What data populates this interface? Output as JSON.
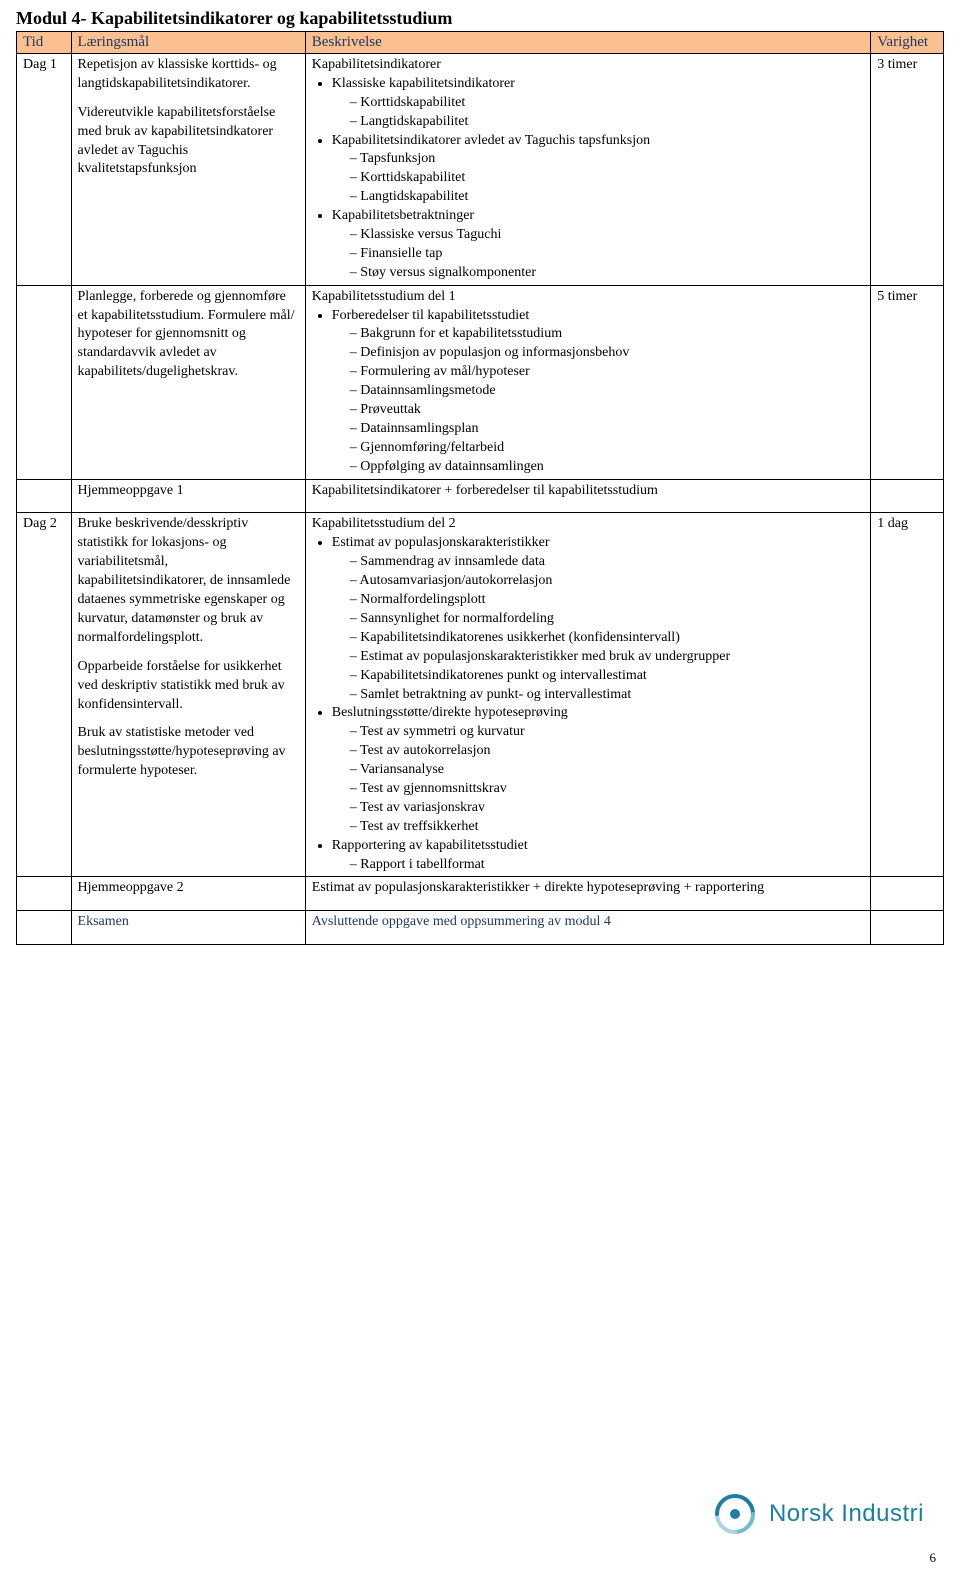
{
  "moduleTitle": "Modul 4- Kapabilitetsindikatorer og kapabilitetsstudium",
  "headers": {
    "tid": "Tid",
    "goal": "Læringsmål",
    "desc": "Beskrivelse",
    "dur": "Varighet"
  },
  "rows": [
    {
      "tid": "Dag 1",
      "goal": [
        "Repetisjon av klassiske korttids- og langtidskapabilitetsindikatorer.",
        "Videreutvikle kapabilitetsforståelse med bruk av kapabilitetsindkatorer avledet av Taguchis kvalitetstapsfunksjon"
      ],
      "descTitle": "Kapabilitetsindikatorer",
      "desc": [
        {
          "t": "Klassiske kapabilitetsindikatorer",
          "c": [
            "Korttidskapabilitet",
            "Langtidskapabilitet"
          ]
        },
        {
          "t": "Kapabilitetsindikatorer avledet av Taguchis tapsfunksjon",
          "c": [
            "Tapsfunksjon",
            "Korttidskapabilitet",
            "Langtidskapabilitet"
          ]
        },
        {
          "t": "Kapabilitetsbetraktninger",
          "c": [
            "Klassiske versus Taguchi",
            "Finansielle tap",
            "Støy versus signalkomponenter"
          ]
        }
      ],
      "dur": "3 timer"
    },
    {
      "tid": "",
      "goal": [
        "Planlegge, forberede og gjennomføre et kapabilitetsstudium. Formulere mål/ hypoteser for gjennomsnitt og standardavvik avledet av kapabilitets/dugelighetskrav."
      ],
      "descTitle": "Kapabilitetsstudium del 1",
      "desc": [
        {
          "t": "Forberedelser til kapabilitetsstudiet",
          "c": [
            "Bakgrunn for et kapabilitetsstudium",
            "Definisjon av populasjon og informasjonsbehov",
            "Formulering av mål/hypoteser",
            "Datainnsamlingsmetode",
            "Prøveuttak",
            "Datainnsamlingsplan",
            "Gjennomføring/feltarbeid",
            "Oppfølging av datainnsamlingen"
          ]
        }
      ],
      "dur": "5 timer"
    },
    {
      "tid": "",
      "goal": [
        "Hjemmeoppgave 1"
      ],
      "descPlain": "Kapabilitetsindikatorer + forberedelser til kapabilitetsstudium",
      "dur": ""
    },
    {
      "tid": "Dag 2",
      "goal": [
        "Bruke beskrivende/desskriptiv statistikk for lokasjons- og variabilitetsmål, kapabilitetsindikatorer, de innsamlede dataenes symmetriske egenskaper og kurvatur, datamønster og bruk av normalfordelingsplott.",
        "Opparbeide forståelse for usikkerhet ved deskriptiv statistikk med bruk av konfidensintervall.",
        "Bruk av statistiske metoder ved beslutningsstøtte/hypoteseprøving av formulerte hypoteser."
      ],
      "descTitle": "Kapabilitetsstudium del 2",
      "desc": [
        {
          "t": "Estimat av populasjonskarakteristikker",
          "c": [
            "Sammendrag av innsamlede data",
            "Autosamvariasjon/autokorrelasjon",
            "Normalfordelingsplott",
            "Sannsynlighet for normalfordeling",
            "Kapabilitetsindikatorenes usikkerhet (konfidensintervall)",
            "Estimat av populasjonskarakteristikker med bruk av undergrupper",
            "Kapabilitetsindikatorenes punkt og intervallestimat",
            "Samlet betraktning av punkt- og intervallestimat"
          ]
        },
        {
          "t": "Beslutningsstøtte/direkte hypoteseprøving",
          "c": [
            "Test av symmetri og kurvatur",
            "Test av autokorrelasjon",
            "Variansanalyse",
            "Test av gjennomsnittskrav",
            "Test av variasjonskrav",
            "Test av treffsikkerhet"
          ]
        },
        {
          "t": "Rapportering av kapabilitetsstudiet",
          "c": [
            "Rapport i tabellformat"
          ]
        }
      ],
      "dur": "1 dag"
    },
    {
      "tid": "",
      "goal": [
        "Hjemmeoppgave 2"
      ],
      "descPlain": "Estimat av populasjonskarakteristikker + direkte hypoteseprøving + rapportering",
      "dur": ""
    },
    {
      "tid": "",
      "goal": [
        "Eksamen"
      ],
      "descPlain": "Avsluttende oppgave med oppsummering av modul 4",
      "dur": "",
      "blue": true
    }
  ],
  "logoText": "Norsk Industri",
  "logoColor": "#1d7ea3",
  "pageNumber": "6"
}
